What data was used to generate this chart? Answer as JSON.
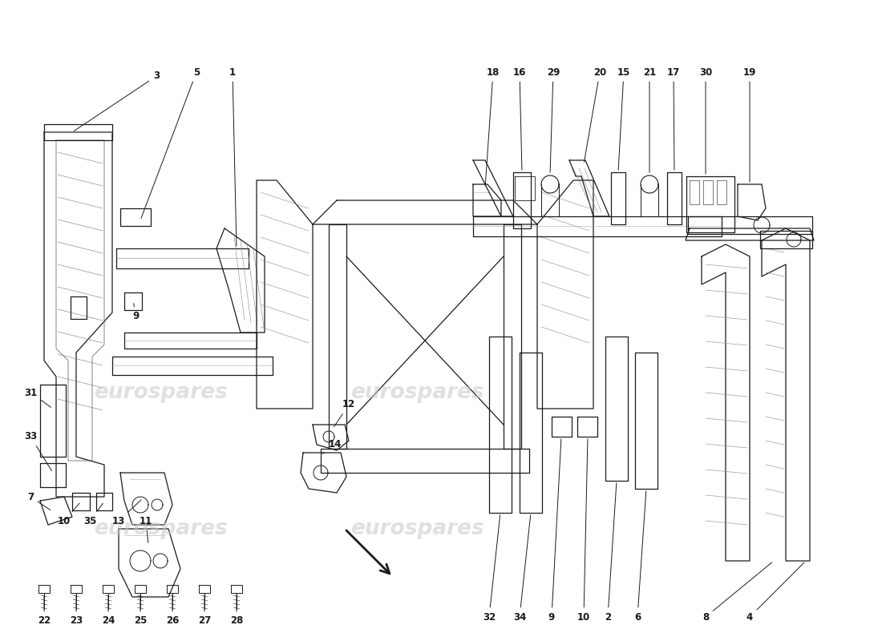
{
  "bg": "#ffffff",
  "lc": "#1a1a1a",
  "wm_color": "#c8c8c8",
  "wm_text": "eurospares",
  "lw": 0.9,
  "fontsize": 8.5
}
